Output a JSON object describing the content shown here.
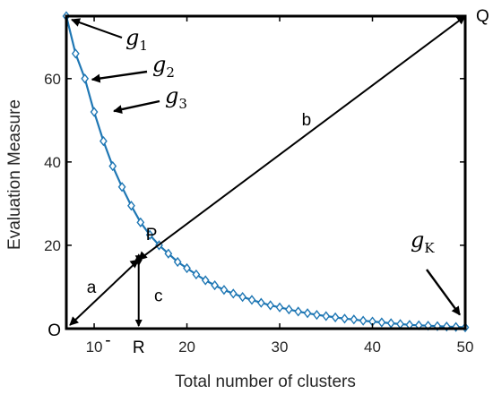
{
  "chart_data": {
    "type": "line",
    "xlabel": "Total number of clusters",
    "ylabel": "Evaluation Measure",
    "xlim": [
      7,
      50
    ],
    "ylim": [
      0,
      75
    ],
    "xticks": [
      10,
      20,
      30,
      40,
      50
    ],
    "yticks": [
      20,
      40,
      60
    ],
    "grid": false,
    "colors": {
      "series": "#1f77b4",
      "annotation": "#000000"
    },
    "series": [
      {
        "x": [
          7,
          8,
          9,
          10,
          11,
          12,
          13,
          14,
          15,
          16,
          17,
          18,
          19,
          20,
          21,
          22,
          23,
          24,
          25,
          26,
          27,
          28,
          29,
          30,
          31,
          32,
          33,
          34,
          35,
          36,
          37,
          38,
          39,
          40,
          41,
          42,
          43,
          44,
          45,
          46,
          47,
          48,
          49,
          50
        ],
        "values": [
          75,
          66,
          60,
          52,
          45,
          39,
          34,
          29.5,
          25.5,
          22.5,
          20,
          18,
          16,
          14.5,
          13,
          11.6,
          10.4,
          9.3,
          8.4,
          7.6,
          6.9,
          6.2,
          5.6,
          5.1,
          4.6,
          4.1,
          3.7,
          3.3,
          3,
          2.7,
          2.4,
          2.2,
          1.9,
          1.7,
          1.5,
          1.3,
          1.1,
          0.9,
          0.8,
          0.7,
          0.6,
          0.5,
          0.4,
          0.3
        ],
        "marker": "diamond"
      }
    ],
    "annotations": {
      "point_labels": {
        "O": "O",
        "Q": "Q",
        "P": "P",
        "R": "R"
      },
      "segment_labels": {
        "a": "a",
        "b": "b",
        "c": "c"
      },
      "gap_tick": "-",
      "curve_labels": [
        {
          "text": "g",
          "sub": "1"
        },
        {
          "text": "g",
          "sub": "2"
        },
        {
          "text": "g",
          "sub": "3"
        },
        {
          "text": "g",
          "sub": "K"
        }
      ],
      "O": [
        7,
        0
      ],
      "Q": [
        50,
        75
      ],
      "P": [
        14.8,
        16.5
      ],
      "R": [
        14.8,
        0
      ]
    }
  }
}
